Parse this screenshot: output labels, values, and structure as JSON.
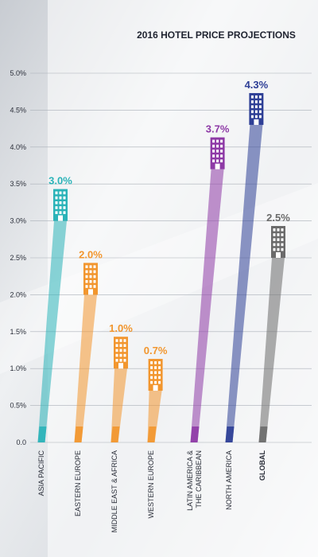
{
  "chart_data": {
    "type": "bar",
    "title": "2016 HOTEL PRICE PROJECTIONS",
    "xlabel": "",
    "ylabel": "",
    "ylim": [
      0,
      5.0
    ],
    "y_ticks": [
      "0.0",
      "0.5%",
      "1.0%",
      "1.5%",
      "2.0%",
      "2.5%",
      "3.0%",
      "3.5%",
      "4.0%",
      "4.5%",
      "5.0%"
    ],
    "grid": true,
    "categories": [
      "ASIA PACIFIC",
      "EASTERN EUROPE",
      "MIDDLE EAST & AFRICA",
      "WESTERN EUROPE",
      "LATIN AMERICA & THE CARIBBEAN",
      "NORTH AMERICA",
      "GLOBAL"
    ],
    "values": [
      3.0,
      2.0,
      1.0,
      0.7,
      3.7,
      4.3,
      2.5
    ],
    "value_labels": [
      "3.0%",
      "2.0%",
      "1.0%",
      "0.7%",
      "3.7%",
      "4.3%",
      "2.5%"
    ],
    "colors": [
      "#2ab3b8",
      "#f2962e",
      "#f2962e",
      "#f2962e",
      "#8e3aa6",
      "#2e3f96",
      "#6b6b6b"
    ]
  }
}
